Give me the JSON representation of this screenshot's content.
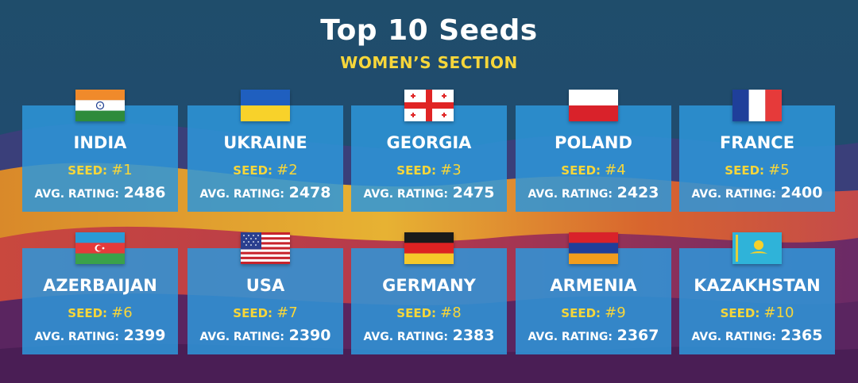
{
  "title": "Top 10 Seeds",
  "subtitle": "WOMEN’S SECTION",
  "seed_label": "SEED:",
  "rating_label": "AVG. RATING:",
  "teams": [
    {
      "country": "INDIA",
      "seed": "#1",
      "rating": "2486",
      "flag": "india-flag-icon"
    },
    {
      "country": "UKRAINE",
      "seed": "#2",
      "rating": "2478",
      "flag": "ukraine-flag-icon"
    },
    {
      "country": "GEORGIA",
      "seed": "#3",
      "rating": "2475",
      "flag": "georgia-flag-icon"
    },
    {
      "country": "POLAND",
      "seed": "#4",
      "rating": "2423",
      "flag": "poland-flag-icon"
    },
    {
      "country": "FRANCE",
      "seed": "#5",
      "rating": "2400",
      "flag": "france-flag-icon"
    },
    {
      "country": "AZERBAIJAN",
      "seed": "#6",
      "rating": "2399",
      "flag": "azerbaijan-flag-icon"
    },
    {
      "country": "USA",
      "seed": "#7",
      "rating": "2390",
      "flag": "usa-flag-icon"
    },
    {
      "country": "GERMANY",
      "seed": "#8",
      "rating": "2383",
      "flag": "germany-flag-icon"
    },
    {
      "country": "ARMENIA",
      "seed": "#9",
      "rating": "2367",
      "flag": "armenia-flag-icon"
    },
    {
      "country": "KAZAKHSTAN",
      "seed": "#10",
      "rating": "2365",
      "flag": "kazakhstan-flag-icon"
    }
  ],
  "colors": {
    "card": "#2d96da",
    "accent_yellow": "#f7d63a",
    "text": "#ffffff"
  }
}
